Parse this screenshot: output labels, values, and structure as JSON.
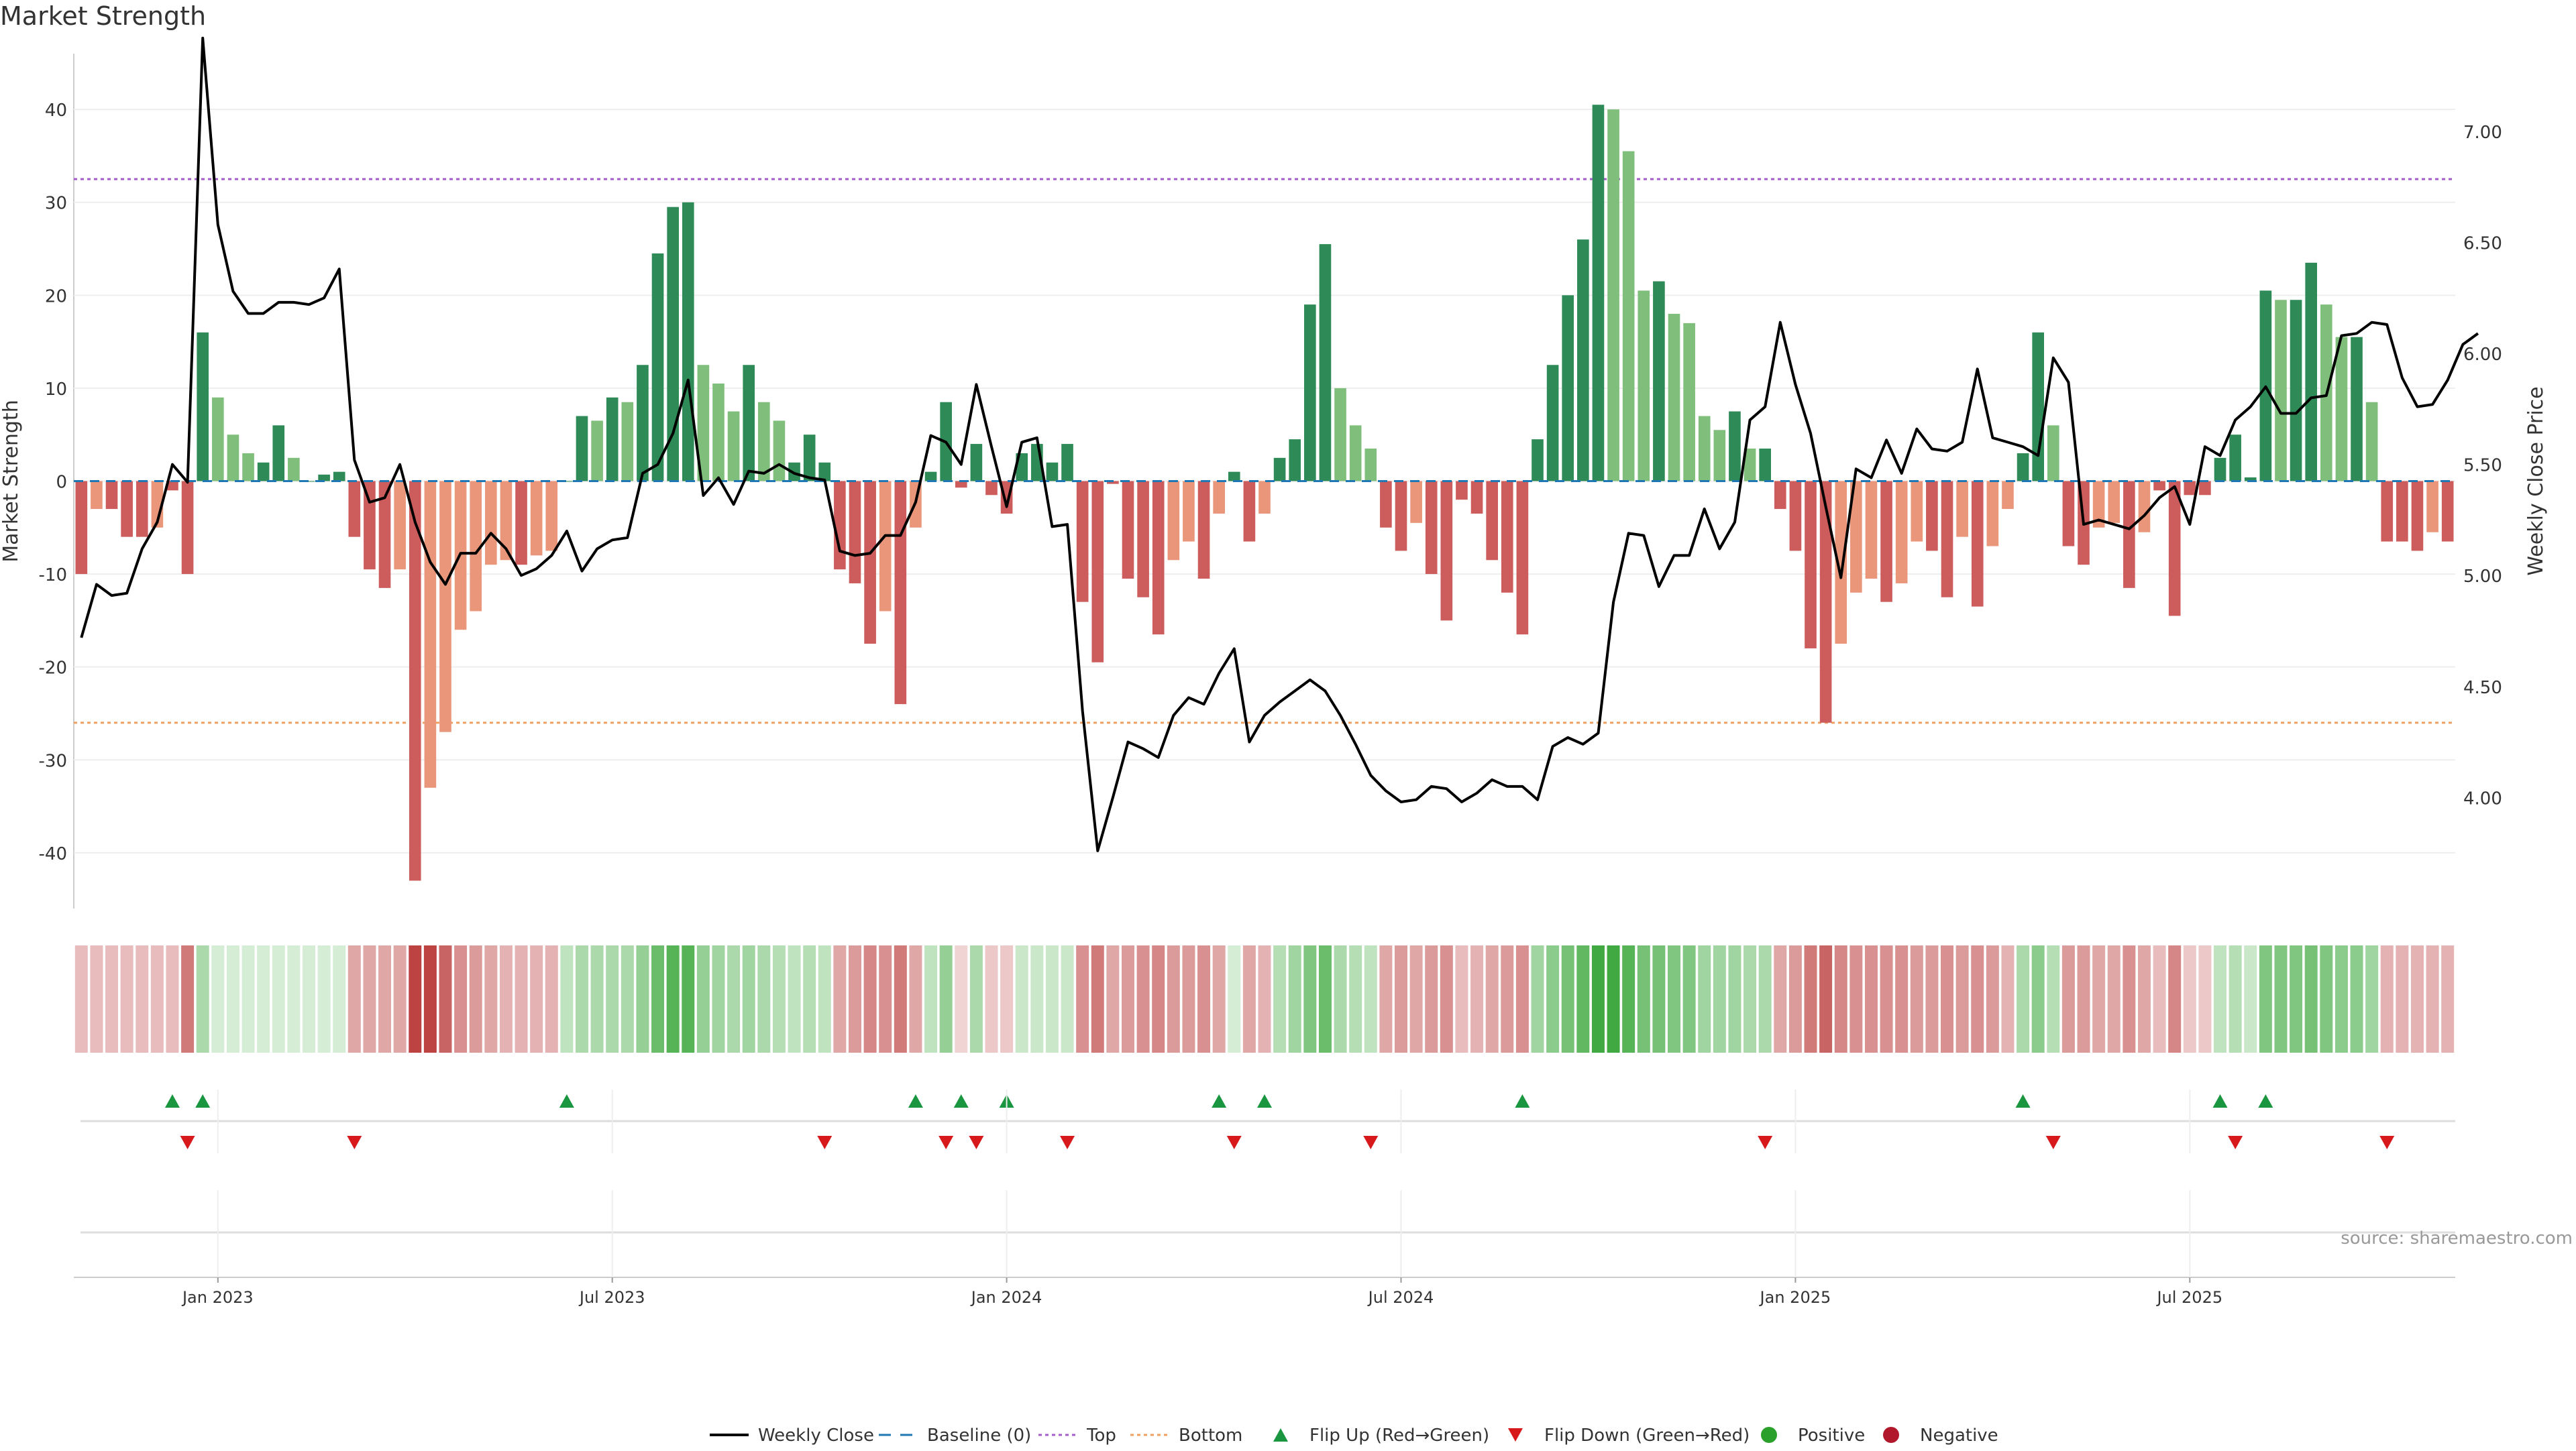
{
  "chart_data": {
    "type": "bar",
    "title": "Market Strength",
    "ylabel": "Market Strength",
    "y2label": "Weekly Close Price",
    "ylim": [
      -46,
      46
    ],
    "y2lim": [
      3.5,
      7.35
    ],
    "yticks": [
      -40,
      -30,
      -20,
      -10,
      0,
      10,
      20,
      30,
      40
    ],
    "y2ticks": [
      "4.00",
      "4.50",
      "5.00",
      "5.50",
      "6.00",
      "6.50",
      "7.00"
    ],
    "y2tick_values": [
      4.0,
      4.5,
      5.0,
      5.5,
      6.0,
      6.5,
      7.0
    ],
    "top_threshold": 32.5,
    "bottom_threshold": -26,
    "x_start_week": 0,
    "xtick_labels": [
      "Jan 2023",
      "Jul 2023",
      "Jan 2024",
      "Jul 2024",
      "Jan 2025",
      "Jul 2025"
    ],
    "xtick_weeks": [
      9,
      35,
      61,
      87,
      113,
      139
    ],
    "strength": [
      -10,
      -3,
      -3,
      -6,
      -6,
      -5,
      -1,
      -10,
      16,
      9,
      5,
      3,
      2,
      6,
      2.5,
      0,
      0.7,
      1,
      -6,
      -9.5,
      -11.5,
      -9.5,
      -43,
      -33,
      -27,
      -16,
      -14,
      -9,
      -8.5,
      -9,
      -8,
      -7.5,
      0,
      7,
      6.5,
      9,
      8.5,
      12.5,
      24.5,
      29.5,
      30,
      12.5,
      10.5,
      7.5,
      12.5,
      8.5,
      6.5,
      2,
      5,
      2,
      -9.5,
      -11,
      -17.5,
      -14,
      -24,
      -5,
      1,
      8.5,
      -0.7,
      4,
      -1.5,
      -3.5,
      3,
      4,
      2,
      4,
      -13,
      -19.5,
      -0.3,
      -10.5,
      -12.5,
      -16.5,
      -8.5,
      -6.5,
      -10.5,
      -3.5,
      1,
      -6.5,
      -3.5,
      2.5,
      4.5,
      19,
      25.5,
      10,
      6,
      3.5,
      -5,
      -7.5,
      -4.5,
      -10,
      -15,
      -2,
      -3.5,
      -8.5,
      -12,
      -16.5,
      4.5,
      12.5,
      20,
      26,
      40.5,
      40,
      35.5,
      20.5,
      21.5,
      18,
      17,
      7,
      5.5,
      7.5,
      3.5,
      3.5,
      -3,
      -7.5,
      -18,
      -26,
      -17.5,
      -12,
      -10.5,
      -13,
      -11,
      -6.5,
      -7.5,
      -12.5,
      -6,
      -13.5,
      -7,
      -3,
      3,
      16,
      6,
      -7,
      -9,
      -5,
      -4.5,
      -11.5,
      -5.5,
      -1,
      -14.5,
      -1.5,
      -1.5,
      2.5,
      5,
      0.4,
      20.5,
      19.5,
      19.5,
      23.5,
      19,
      15.5,
      15.5,
      8.5,
      -6.5,
      -6.5,
      -7.5,
      -5.5,
      -6.5
    ],
    "weekly_close": [
      4.72,
      4.96,
      4.91,
      4.92,
      5.12,
      5.24,
      5.5,
      5.42,
      7.42,
      6.58,
      6.28,
      6.18,
      6.18,
      6.23,
      6.23,
      6.22,
      6.25,
      6.38,
      5.52,
      5.33,
      5.35,
      5.5,
      5.24,
      5.06,
      4.96,
      5.1,
      5.1,
      5.19,
      5.12,
      5.0,
      5.03,
      5.09,
      5.2,
      5.02,
      5.12,
      5.16,
      5.17,
      5.46,
      5.5,
      5.64,
      5.88,
      5.36,
      5.44,
      5.32,
      5.47,
      5.46,
      5.5,
      5.46,
      5.44,
      5.43,
      5.11,
      5.09,
      5.1,
      5.18,
      5.18,
      5.33,
      5.63,
      5.6,
      5.5,
      5.86,
      5.58,
      5.31,
      5.6,
      5.62,
      5.22,
      5.23,
      4.39,
      3.76,
      4.0,
      4.25,
      4.22,
      4.18,
      4.37,
      4.45,
      4.42,
      4.56,
      4.67,
      4.25,
      4.37,
      4.43,
      4.48,
      4.53,
      4.48,
      4.37,
      4.24,
      4.1,
      4.03,
      3.98,
      3.99,
      4.05,
      4.04,
      3.98,
      4.02,
      4.08,
      4.05,
      4.05,
      3.99,
      4.23,
      4.27,
      4.24,
      4.29,
      4.88,
      5.19,
      5.18,
      4.95,
      5.09,
      5.09,
      5.3,
      5.12,
      5.24,
      5.7,
      5.76,
      6.14,
      5.86,
      5.64,
      5.31,
      4.99,
      5.48,
      5.44,
      5.61,
      5.46,
      5.66,
      5.57,
      5.56,
      5.6,
      5.93,
      5.62,
      5.6,
      5.58,
      5.54,
      5.98,
      5.87,
      5.23,
      5.25,
      5.23,
      5.21,
      5.27,
      5.35,
      5.4,
      5.23,
      5.58,
      5.54,
      5.7,
      5.76,
      5.85,
      5.73,
      5.73,
      5.8,
      5.81,
      6.08,
      6.09,
      6.14,
      6.13,
      5.89,
      5.76,
      5.77,
      5.88,
      6.04,
      6.09
    ],
    "flip_up_weeks": [
      6,
      8,
      32,
      55,
      58,
      61,
      75,
      78,
      95,
      128,
      141,
      144
    ],
    "flip_down_weeks": [
      7,
      18,
      49,
      57,
      59,
      65,
      76,
      85,
      111,
      130,
      142,
      152
    ],
    "heatmap_intensity": [
      0.3,
      0.3,
      0.3,
      0.3,
      0.3,
      0.3,
      0.3,
      0.6,
      0.4,
      0.2,
      0.2,
      0.2,
      0.2,
      0.2,
      0.2,
      0.2,
      0.2,
      0.2,
      0.4,
      0.4,
      0.4,
      0.4,
      0.85,
      0.85,
      0.7,
      0.5,
      0.45,
      0.4,
      0.35,
      0.35,
      0.35,
      0.35,
      0.3,
      0.4,
      0.4,
      0.4,
      0.4,
      0.5,
      0.7,
      0.8,
      0.8,
      0.5,
      0.45,
      0.4,
      0.45,
      0.4,
      0.35,
      0.3,
      0.35,
      0.3,
      0.4,
      0.45,
      0.55,
      0.5,
      0.6,
      0.4,
      0.3,
      0.5,
      0.2,
      0.4,
      0.25,
      0.25,
      0.25,
      0.25,
      0.25,
      0.25,
      0.5,
      0.6,
      0.4,
      0.45,
      0.5,
      0.55,
      0.45,
      0.45,
      0.5,
      0.4,
      0.2,
      0.4,
      0.35,
      0.35,
      0.45,
      0.6,
      0.7,
      0.4,
      0.35,
      0.3,
      0.4,
      0.45,
      0.4,
      0.45,
      0.5,
      0.3,
      0.35,
      0.4,
      0.45,
      0.5,
      0.45,
      0.55,
      0.65,
      0.75,
      0.9,
      0.9,
      0.8,
      0.65,
      0.65,
      0.6,
      0.6,
      0.45,
      0.45,
      0.45,
      0.4,
      0.4,
      0.4,
      0.45,
      0.6,
      0.7,
      0.55,
      0.5,
      0.5,
      0.5,
      0.5,
      0.45,
      0.45,
      0.5,
      0.45,
      0.5,
      0.45,
      0.35,
      0.4,
      0.55,
      0.35,
      0.45,
      0.45,
      0.4,
      0.4,
      0.5,
      0.4,
      0.3,
      0.55,
      0.25,
      0.25,
      0.3,
      0.35,
      0.25,
      0.6,
      0.6,
      0.6,
      0.65,
      0.6,
      0.55,
      0.55,
      0.45,
      0.35,
      0.35,
      0.35,
      0.35,
      0.35
    ],
    "colors": {
      "pos_strong": "#2e8b57",
      "pos_weak": "#7fbf7b",
      "neg_strong": "#cd5c5c",
      "neg_weak": "#e9967a",
      "line": "#000000",
      "top_line": "#a35cc8",
      "bottom_line": "#f0a060",
      "baseline": "#1f77b4",
      "flip_up": "#1a9641",
      "flip_down": "#d7191c",
      "positive_dot": "#2ca02c",
      "negative_dot": "#b2182b"
    },
    "legend": {
      "position": "bottom-center",
      "entries": [
        "Weekly Close",
        "Baseline (0)",
        "Top",
        "Bottom",
        "Flip Up (Red→Green)",
        "Flip Down (Green→Red)",
        "Positive",
        "Negative"
      ]
    },
    "source_note": "source: sharemaestro.com"
  }
}
